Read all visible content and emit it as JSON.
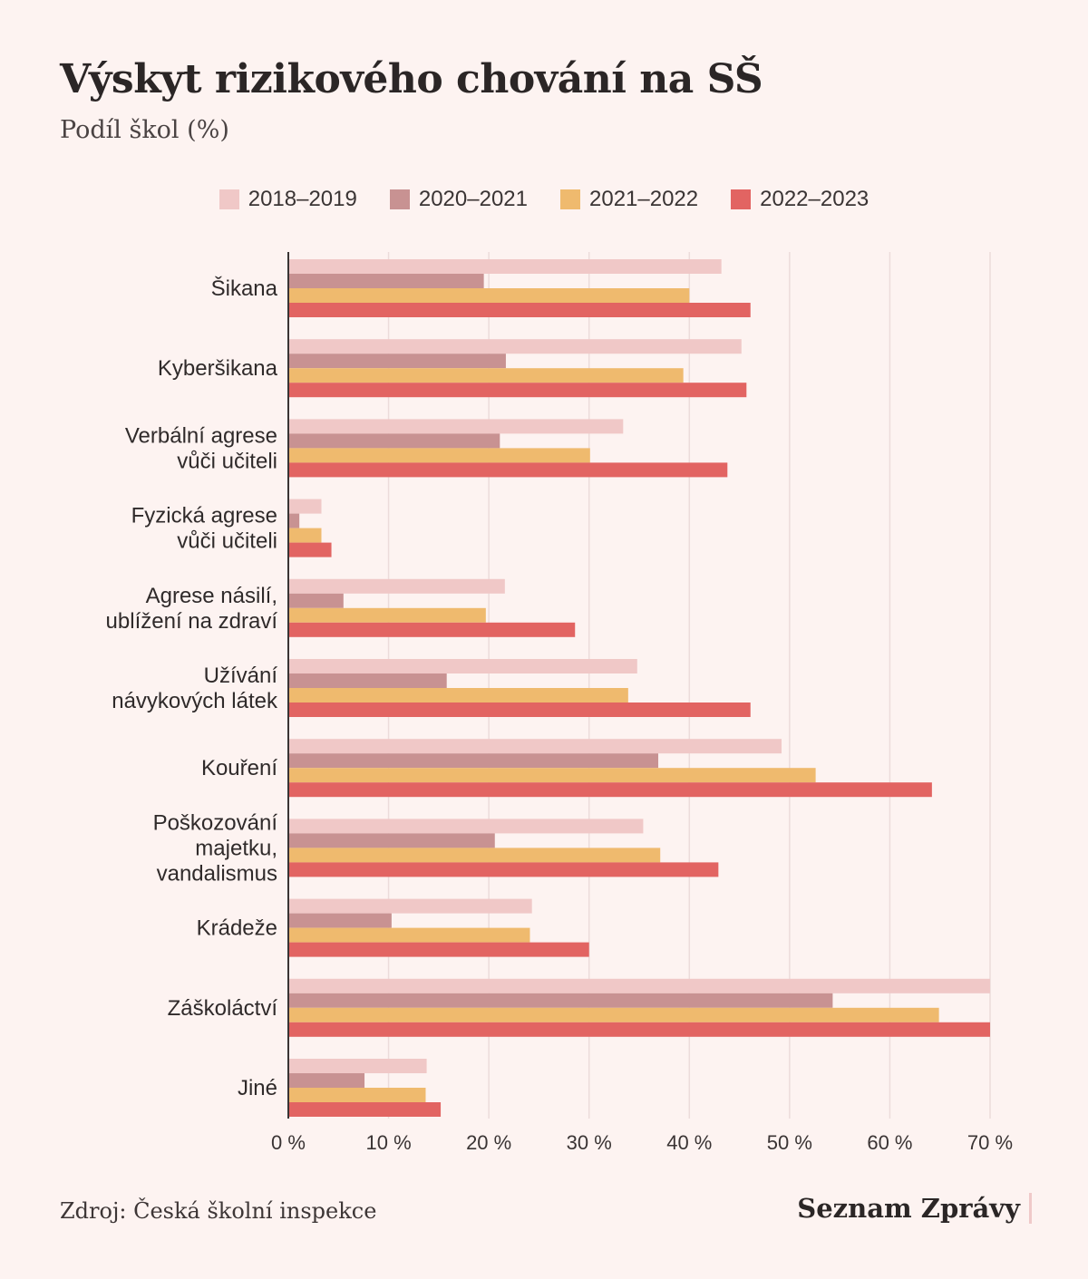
{
  "chart_data": {
    "type": "bar",
    "orientation": "horizontal",
    "title": "Výskyt rizikového chování na SŠ",
    "subtitle": "Podíl škol (%)",
    "categories": [
      [
        "Šikana"
      ],
      [
        "Kyberšikana"
      ],
      [
        "Verbální agrese",
        "vůči učiteli"
      ],
      [
        "Fyzická agrese",
        "vůči učiteli"
      ],
      [
        "Agrese násilí,",
        "ublížení na zdraví"
      ],
      [
        "Užívání",
        "návykových látek"
      ],
      [
        "Kouření"
      ],
      [
        "Poškozování",
        "majetku,",
        "vandalismus"
      ],
      [
        "Krádeže"
      ],
      [
        "Záškoláctví"
      ],
      [
        "Jiné"
      ]
    ],
    "series": [
      {
        "name": "2018–2019",
        "color": "#f0c8c7",
        "values": [
          43.2,
          45.2,
          33.4,
          3.3,
          21.6,
          34.8,
          49.2,
          35.4,
          24.3,
          70.0,
          13.8
        ]
      },
      {
        "name": "2020–2021",
        "color": "#c89292",
        "values": [
          19.5,
          21.7,
          21.1,
          1.1,
          5.5,
          15.8,
          36.9,
          20.6,
          10.3,
          54.3,
          7.6
        ]
      },
      {
        "name": "2021–2022",
        "color": "#efba6e",
        "values": [
          40.0,
          39.4,
          30.1,
          3.3,
          19.7,
          33.9,
          52.6,
          37.1,
          24.1,
          64.9,
          13.7
        ]
      },
      {
        "name": "2022–2023",
        "color": "#e26462",
        "values": [
          46.1,
          45.7,
          43.8,
          4.3,
          28.6,
          46.1,
          64.2,
          42.9,
          30.0,
          70.0,
          15.2
        ]
      }
    ],
    "xlim": [
      0,
      70
    ],
    "xticks": [
      "0 %",
      "10 %",
      "20 %",
      "30 %",
      "40 %",
      "50 %",
      "60 %",
      "70 %"
    ],
    "grid": true,
    "legend": "top-center"
  },
  "footer": {
    "source": "Zdroj: Česká školní inspekce",
    "brand": "Seznam Zprávy"
  }
}
